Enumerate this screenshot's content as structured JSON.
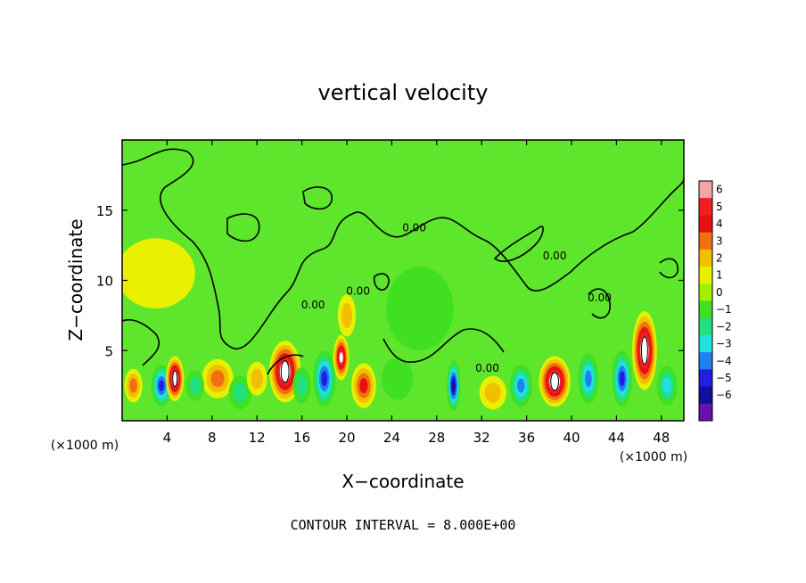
{
  "chart_data": {
    "type": "heatmap",
    "title": "vertical velocity",
    "xlabel": "X−coordinate",
    "ylabel": "Z−coordinate",
    "x_unit": "(×1000 m)",
    "x_unit_right": "(×1000 m)",
    "footer": "CONTOUR INTERVAL = 8.000E+00",
    "xlim": [
      0,
      50
    ],
    "ylim": [
      0,
      20
    ],
    "x_ticks": [
      4,
      8,
      12,
      16,
      20,
      24,
      28,
      32,
      36,
      40,
      44,
      48
    ],
    "x_tick_labels": [
      "4",
      "8",
      "12",
      "16",
      "20",
      "24",
      "28",
      "32",
      "36",
      "40",
      "44",
      "48"
    ],
    "y_ticks": [
      5,
      10,
      15
    ],
    "y_tick_labels": [
      "5",
      "10",
      "15"
    ],
    "colorbar": {
      "levels": [
        6,
        5,
        4,
        3,
        2,
        1,
        0,
        -1,
        -2,
        -3,
        -4,
        -5,
        -6
      ],
      "labels": [
        "6",
        "5",
        "4",
        "3",
        "2",
        "1",
        "0",
        "−1",
        "−2",
        "−3",
        "−4",
        "−5",
        "−6"
      ],
      "colors": [
        "#f4a4a4",
        "#f02020",
        "#e81010",
        "#f07010",
        "#f0c000",
        "#e8f000",
        "#a0f000",
        "#40e020",
        "#20e080",
        "#20e0e0",
        "#2080f0",
        "#2020e0",
        "#1010a0",
        "#6a10b0"
      ]
    },
    "contour_labels": [
      {
        "text": "0.00",
        "x": 17.0,
        "y": 8.0
      },
      {
        "text": "0.00",
        "x": 21.0,
        "y": 9.0
      },
      {
        "text": "0.00",
        "x": 26.0,
        "y": 13.5
      },
      {
        "text": "0.00",
        "x": 38.5,
        "y": 11.5
      },
      {
        "text": "0.00",
        "x": 42.5,
        "y": 8.5
      },
      {
        "text": "0.00",
        "x": 32.5,
        "y": 3.5
      }
    ],
    "cells": [
      {
        "x": 3.5,
        "z": 2.5,
        "sx": 0.9,
        "sz": 1.5,
        "v": -5
      },
      {
        "x": 4.7,
        "z": 3.0,
        "sx": 0.8,
        "sz": 1.6,
        "v": 7
      },
      {
        "x": 8.5,
        "z": 3.0,
        "sx": 1.4,
        "sz": 1.4,
        "v": 3
      },
      {
        "x": 10.5,
        "z": 2.0,
        "sx": 1.0,
        "sz": 1.2,
        "v": -2
      },
      {
        "x": 14.5,
        "z": 3.5,
        "sx": 1.4,
        "sz": 2.2,
        "v": 7
      },
      {
        "x": 18.0,
        "z": 3.0,
        "sx": 1.0,
        "sz": 2.0,
        "v": -5
      },
      {
        "x": 19.5,
        "z": 4.5,
        "sx": 0.7,
        "sz": 1.6,
        "v": 6
      },
      {
        "x": 21.5,
        "z": 2.5,
        "sx": 1.1,
        "sz": 1.6,
        "v": 4
      },
      {
        "x": 29.5,
        "z": 2.5,
        "sx": 0.6,
        "sz": 1.8,
        "v": -6
      },
      {
        "x": 35.5,
        "z": 2.5,
        "sx": 1.0,
        "sz": 1.5,
        "v": -4
      },
      {
        "x": 38.5,
        "z": 2.8,
        "sx": 1.4,
        "sz": 1.8,
        "v": 7
      },
      {
        "x": 41.5,
        "z": 3.0,
        "sx": 0.9,
        "sz": 1.8,
        "v": -4
      },
      {
        "x": 44.5,
        "z": 3.0,
        "sx": 0.9,
        "sz": 2.0,
        "v": -5
      },
      {
        "x": 46.5,
        "z": 5.0,
        "sx": 1.1,
        "sz": 2.8,
        "v": 7
      },
      {
        "x": 48.5,
        "z": 2.5,
        "sx": 0.9,
        "sz": 1.4,
        "v": -3
      },
      {
        "x": 1.0,
        "z": 2.5,
        "sx": 0.8,
        "sz": 1.2,
        "v": 3
      },
      {
        "x": 24.5,
        "z": 3.0,
        "sx": 1.4,
        "sz": 1.5,
        "v": -1
      },
      {
        "x": 33.0,
        "z": 2.0,
        "sx": 1.2,
        "sz": 1.2,
        "v": 2
      },
      {
        "x": 16.0,
        "z": 2.5,
        "sx": 0.8,
        "sz": 1.3,
        "v": -2
      },
      {
        "x": 12.0,
        "z": 3.0,
        "sx": 0.9,
        "sz": 1.2,
        "v": 2
      },
      {
        "x": 6.5,
        "z": 2.5,
        "sx": 0.8,
        "sz": 1.1,
        "v": -2
      },
      {
        "x": 26.5,
        "z": 8.0,
        "sx": 3.0,
        "sz": 3.0,
        "v": -1
      },
      {
        "x": 3.0,
        "z": 10.5,
        "sx": 3.5,
        "sz": 2.5,
        "v": 1
      },
      {
        "x": 20.0,
        "z": 7.5,
        "sx": 0.8,
        "sz": 1.5,
        "v": 2
      }
    ]
  }
}
